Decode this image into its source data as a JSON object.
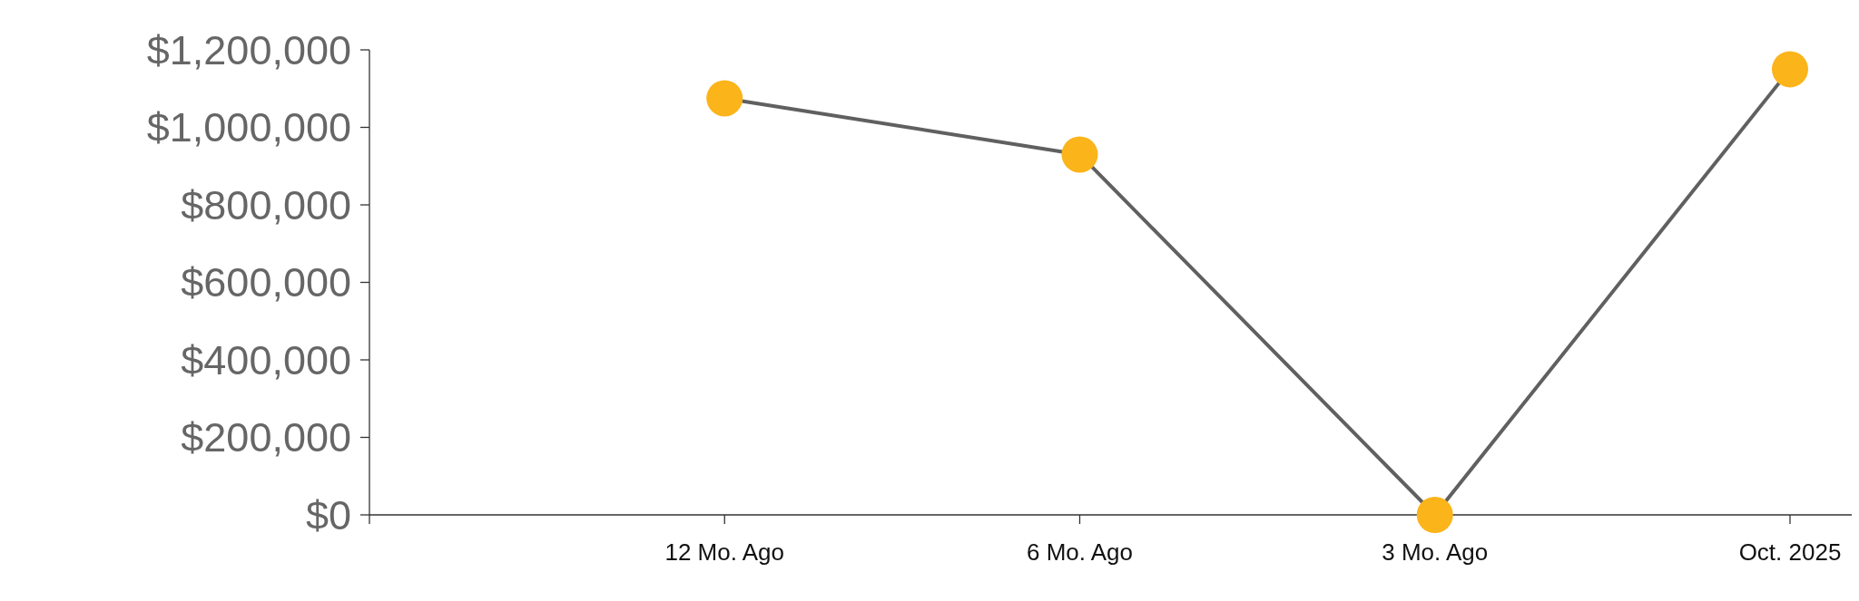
{
  "chart_data": {
    "type": "line",
    "categories": [
      null,
      "12 Mo. Ago",
      "6 Mo. Ago",
      "3 Mo. Ago",
      "Oct. 2025"
    ],
    "series": [
      {
        "color": "#606060",
        "colors": [
          null,
          "#fbb41a",
          "#fbb41a",
          "#fbb41a",
          "#fbb41a"
        ],
        "values": [
          null,
          1075000,
          930000,
          0,
          1150000
        ]
      }
    ],
    "ylim": [
      0,
      1200000
    ],
    "yticks": [
      {
        "value": 0,
        "label": "$0"
      },
      {
        "value": 200000,
        "label": "$200,000"
      },
      {
        "value": 400000,
        "label": "$400,000"
      },
      {
        "value": 600000,
        "label": "$600,000"
      },
      {
        "value": 800000,
        "label": "$800,000"
      },
      {
        "value": 1000000,
        "label": "$1,000,000"
      },
      {
        "value": 1200000,
        "label": "$1,200,000"
      }
    ],
    "marker": "circle",
    "grid": false
  }
}
